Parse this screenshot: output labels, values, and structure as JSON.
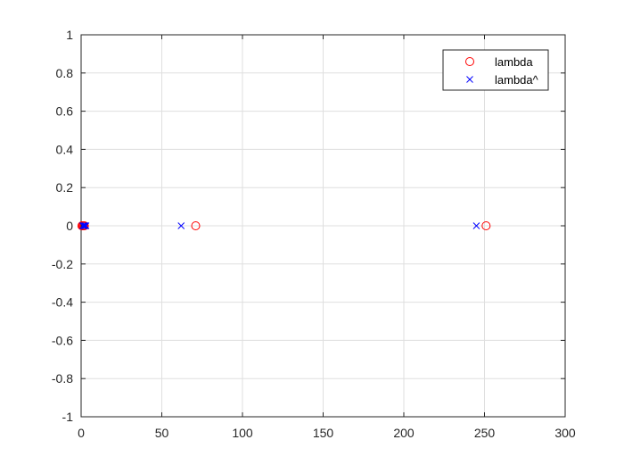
{
  "chart_data": {
    "type": "scatter",
    "title": "",
    "xlabel": "",
    "ylabel": "",
    "xlim": [
      0,
      300
    ],
    "ylim": [
      -1,
      1
    ],
    "x_ticks": [
      0,
      50,
      100,
      150,
      200,
      250,
      300
    ],
    "y_ticks": [
      -1,
      -0.8,
      -0.6,
      -0.4,
      -0.2,
      0,
      0.2,
      0.4,
      0.6,
      0.8,
      1
    ],
    "x_tick_labels": [
      "0",
      "50",
      "100",
      "150",
      "200",
      "250",
      "300"
    ],
    "y_tick_labels": [
      "-1",
      "-0.8",
      "-0.6",
      "-0.4",
      "-0.2",
      "0",
      "0.2",
      "0.4",
      "0.6",
      "0.8",
      "1"
    ],
    "grid": true,
    "legend_position": "top-right",
    "series": [
      {
        "name": "lambda",
        "marker": "circle",
        "color": "#ff0000",
        "x": [
          0.5,
          1,
          1.5,
          2,
          71,
          251
        ],
        "y": [
          0,
          0,
          0,
          0,
          0,
          0
        ]
      },
      {
        "name": "lambda^",
        "marker": "x",
        "color": "#0000ff",
        "x": [
          1,
          1.5,
          2,
          2.5,
          3,
          62,
          245
        ],
        "y": [
          0,
          0,
          0,
          0,
          0,
          0,
          0
        ]
      }
    ]
  }
}
